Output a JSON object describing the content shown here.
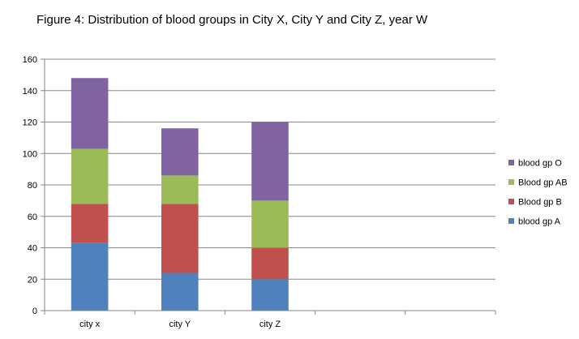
{
  "chart_data": {
    "type": "bar",
    "stacked": true,
    "title": "Figure 4: Distribution of blood groups in City X, City Y and City Z, year W",
    "categories": [
      "city x",
      "city Y",
      "city Z",
      "",
      ""
    ],
    "series": [
      {
        "name": "blood gp A",
        "color": "#4F81BD",
        "values": [
          43,
          24,
          20,
          null,
          null
        ]
      },
      {
        "name": "Blood gp B",
        "color": "#C0504D",
        "values": [
          25,
          44,
          20,
          null,
          null
        ]
      },
      {
        "name": "Blood gp AB",
        "color": "#9BBB59",
        "values": [
          35,
          18,
          30,
          null,
          null
        ]
      },
      {
        "name": "blood gp O",
        "color": "#8064A2",
        "values": [
          45,
          30,
          50,
          null,
          null
        ]
      }
    ],
    "ylim": [
      0,
      160
    ],
    "yticks": [
      0,
      20,
      40,
      60,
      80,
      100,
      120,
      140,
      160
    ],
    "xlabel": "",
    "ylabel": "",
    "grid": true,
    "legend": "right",
    "legend_order": [
      "blood gp O",
      "Blood gp AB",
      "Blood gp B",
      "blood gp A"
    ]
  }
}
